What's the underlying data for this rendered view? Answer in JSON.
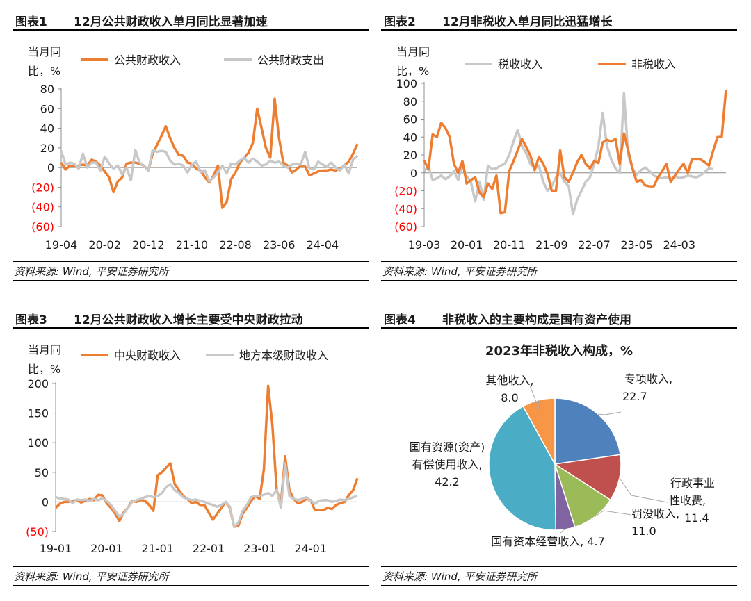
{
  "colors": {
    "orange": "#ED7D31",
    "gray": "#C8C8C8",
    "neg": "#FF0000",
    "pie": [
      "#4F81BD",
      "#C0504D",
      "#9BBB59",
      "#8064A2",
      "#4BACC6",
      "#F79646"
    ]
  },
  "source": "资料来源: Wind, 平安证券研究所",
  "chart_data": [
    {
      "id": "fig1",
      "label": "图表1",
      "title": "12月公共财政收入单月同比显著加速",
      "type": "line",
      "ylabel_line1": "当月同",
      "ylabel_line2": "比，%",
      "ylim": [
        -60,
        80
      ],
      "yticks": [
        80,
        60,
        40,
        20,
        0,
        -20,
        -40,
        -60
      ],
      "yticklabels": [
        "80",
        "60",
        "40",
        "20",
        "0",
        "(20)",
        "(40)",
        "(60)"
      ],
      "xticklabels": [
        "19-04",
        "20-02",
        "20-12",
        "21-10",
        "22-08",
        "23-06",
        "24-04"
      ],
      "tick_indices": [
        0,
        10,
        20,
        30,
        40,
        50,
        60
      ],
      "series": [
        {
          "name": "公共财政收入",
          "color": "#ED7D31",
          "values": [
            5,
            -2,
            2,
            1,
            2,
            3,
            2,
            8,
            6,
            2,
            -4,
            -10,
            -25,
            -14,
            -10,
            4,
            5,
            5,
            4,
            2,
            -3,
            14,
            23,
            32,
            42,
            30,
            20,
            13,
            12,
            5,
            4,
            -1,
            -3,
            -10,
            -15,
            -8,
            2,
            -41,
            -35,
            -12,
            -5,
            5,
            10,
            15,
            25,
            60,
            40,
            20,
            10,
            70,
            30,
            5,
            2,
            -5,
            -2,
            2,
            1,
            -8,
            -6,
            -4,
            -3,
            -3,
            -2,
            -3,
            -1,
            2,
            6,
            14,
            24
          ]
        },
        {
          "name": "公共财政支出",
          "color": "#C8C8C8",
          "values": [
            17,
            3,
            5,
            4,
            -1,
            14,
            0,
            5,
            5,
            -3,
            11,
            4,
            -1,
            2,
            -7,
            0,
            -13,
            18,
            5,
            2,
            -3,
            18,
            16,
            17,
            16,
            7,
            3,
            4,
            2,
            -5,
            3,
            6,
            -5,
            -3,
            -14,
            -10,
            -5,
            2,
            -6,
            4,
            3,
            7,
            10,
            5,
            9,
            6,
            2,
            3,
            7,
            5,
            6,
            2,
            0,
            3,
            4,
            3,
            16,
            -1,
            -2,
            6,
            3,
            1,
            5,
            0,
            -3,
            3,
            -6,
            8,
            12
          ]
        }
      ]
    },
    {
      "id": "fig2",
      "label": "图表2",
      "title": "12月非税收入单月同比迅猛增长",
      "type": "line",
      "ylabel_line1": "当月同",
      "ylabel_line2": "比，%",
      "ylim": [
        -60,
        100
      ],
      "yticks": [
        100,
        80,
        60,
        40,
        20,
        0,
        -20,
        -40,
        -60
      ],
      "yticklabels": [
        "100",
        "80",
        "60",
        "40",
        "20",
        "0",
        "(20)",
        "(40)",
        "(60)"
      ],
      "xticklabels": [
        "19-03",
        "20-01",
        "20-11",
        "21-09",
        "22-07",
        "23-05",
        "24-03"
      ],
      "tick_indices": [
        0,
        10,
        20,
        30,
        40,
        50,
        60
      ],
      "series": [
        {
          "name": "税收收入",
          "color": "#C8C8C8",
          "values": [
            2,
            7,
            -8,
            -6,
            -3,
            -7,
            -4,
            2,
            -8,
            10,
            -4,
            -10,
            -32,
            -10,
            -30,
            8,
            4,
            5,
            8,
            10,
            20,
            35,
            48,
            30,
            22,
            10,
            5,
            8,
            -10,
            -20,
            -15,
            -5,
            0,
            -10,
            -15,
            -46,
            -30,
            -20,
            -10,
            -5,
            10,
            30,
            67,
            30,
            15,
            5,
            0,
            89,
            20,
            5,
            -2,
            3,
            6,
            2,
            -3,
            -5,
            -6,
            -5,
            -7,
            -4,
            -6,
            -5,
            -3,
            -4,
            -5,
            -3,
            1,
            5,
            4
          ]
        },
        {
          "name": "非税收入",
          "color": "#ED7D31",
          "values": [
            14,
            4,
            43,
            40,
            56,
            50,
            40,
            10,
            0,
            13,
            -12,
            -8,
            -5,
            -22,
            -27,
            -12,
            -18,
            -3,
            -45,
            -44,
            2,
            13,
            25,
            38,
            29,
            19,
            3,
            18,
            10,
            -1,
            -20,
            -20,
            25,
            -5,
            -10,
            0,
            12,
            20,
            10,
            5,
            13,
            11,
            34,
            37,
            35,
            38,
            10,
            44,
            25,
            5,
            -10,
            -8,
            -14,
            -15,
            -15,
            -5,
            2,
            10,
            -10,
            -3,
            4,
            10,
            0,
            15,
            15,
            15,
            12,
            8,
            25,
            40,
            40,
            93
          ]
        }
      ]
    },
    {
      "id": "fig3",
      "label": "图表3",
      "title": "12月公共财政收入增长主要受中央财政拉动",
      "type": "line",
      "ylabel_line1": "当月同",
      "ylabel_line2": "比，%",
      "ylim": [
        -50,
        200
      ],
      "yticks": [
        200,
        150,
        100,
        50,
        0,
        -50
      ],
      "yticklabels": [
        "200",
        "150",
        "100",
        "50",
        "0",
        "(50)"
      ],
      "xticklabels": [
        "19-01",
        "20-01",
        "21-01",
        "22-01",
        "23-01",
        "24-01"
      ],
      "tick_indices": [
        0,
        12,
        24,
        36,
        48,
        60
      ],
      "series": [
        {
          "name": "中央财政收入",
          "color": "#ED7D31",
          "values": [
            -10,
            -3,
            0,
            0,
            2,
            3,
            -1,
            2,
            5,
            3,
            12,
            11,
            -2,
            -10,
            -20,
            -32,
            -18,
            -10,
            2,
            0,
            3,
            2,
            -5,
            -15,
            45,
            50,
            58,
            65,
            30,
            20,
            10,
            5,
            -2,
            0,
            -5,
            -5,
            -18,
            -30,
            -20,
            -10,
            0,
            -10,
            -42,
            -40,
            -20,
            -10,
            2,
            10,
            5,
            55,
            196,
            130,
            20,
            -2,
            77,
            20,
            5,
            -2,
            0,
            5,
            3,
            -14,
            -14,
            -14,
            -10,
            -12,
            -5,
            -2,
            0,
            12,
            20,
            40
          ]
        },
        {
          "name": "地方本级财政收入",
          "color": "#C8C8C8",
          "values": [
            8,
            6,
            5,
            4,
            -2,
            4,
            3,
            4,
            2,
            5,
            3,
            6,
            2,
            -5,
            -15,
            -25,
            -20,
            -10,
            0,
            3,
            5,
            8,
            10,
            8,
            10,
            15,
            25,
            30,
            20,
            15,
            8,
            5,
            3,
            4,
            2,
            0,
            -3,
            -5,
            -8,
            -5,
            0,
            -8,
            -42,
            -35,
            -15,
            -5,
            8,
            10,
            10,
            12,
            15,
            10,
            20,
            -10,
            65,
            10,
            5,
            3,
            5,
            8,
            2,
            -3,
            2,
            3,
            3,
            0,
            2,
            4,
            3,
            5,
            8,
            10
          ]
        }
      ]
    },
    {
      "id": "fig4",
      "label": "图表4",
      "title": "非税收入的主要构成是国有资产使用",
      "type": "pie",
      "chart_title": "2023年非税收入构成，%",
      "slices": [
        {
          "label": "专项收入,",
          "value": 22.7,
          "color": "#4F81BD"
        },
        {
          "label": "行政事业性收费,",
          "value": 11.4,
          "color": "#C0504D"
        },
        {
          "label": "罚没收入,",
          "value": 11.0,
          "color": "#9BBB59"
        },
        {
          "label": "国有资本经营收入,",
          "value": 4.7,
          "color": "#8064A2"
        },
        {
          "label": "国有资源(资产)有偿使用收入,",
          "value": 42.2,
          "color": "#4BACC6"
        },
        {
          "label": "其他收入,",
          "value": 8.0,
          "color": "#F79646"
        }
      ],
      "label_texts": {
        "s0": [
          "专项收入,",
          "22.7"
        ],
        "s1": [
          "行政事业",
          "性收费,",
          "11.4"
        ],
        "s2": [
          "罚没收入,",
          "11.0"
        ],
        "s3": [
          "国有资本经营收入, 4.7"
        ],
        "s4": [
          "国有资源(资产)",
          "有偿使用收入,",
          "42.2"
        ],
        "s5": [
          "其他收入,",
          "8.0"
        ]
      }
    }
  ]
}
